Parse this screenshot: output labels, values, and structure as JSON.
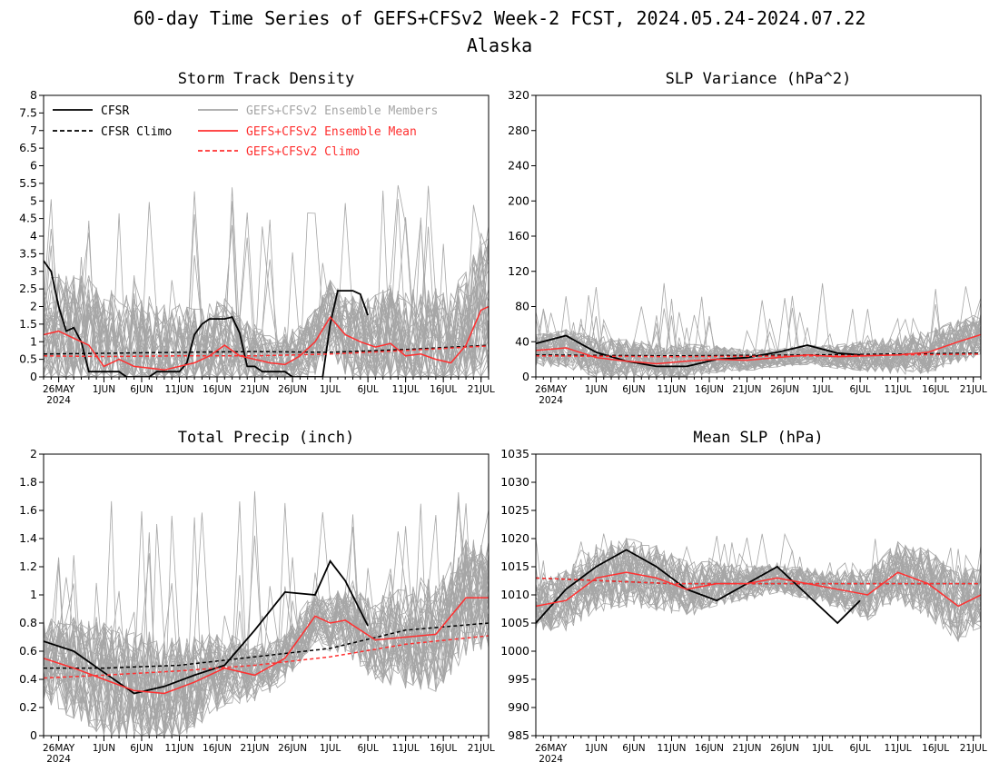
{
  "figure": {
    "title_line1": "60-day Time Series of GEFS+CFSv2 Week-2 FCST, 2024.05.24-2024.07.22",
    "title_line2": "Alaska"
  },
  "colors": {
    "obs": "#000000",
    "members": "#a6a6a6",
    "ens_mean": "#ff3030",
    "model_climo": "#ff3030",
    "obs_climo": "#000000"
  },
  "x_axis": {
    "start": "2024-05-24",
    "end": "2024-07-22",
    "tick_labels": [
      "26MAY",
      "1JUN",
      "6JUN",
      "11JUN",
      "16JUN",
      "21JUN",
      "26JUN",
      "1JUL",
      "6JUL",
      "11JUL",
      "16JUL",
      "21JUL"
    ],
    "tick_dates": [
      "2024-05-26",
      "2024-06-01",
      "2024-06-06",
      "2024-06-11",
      "2024-06-16",
      "2024-06-21",
      "2024-06-26",
      "2024-07-01",
      "2024-07-06",
      "2024-07-11",
      "2024-07-16",
      "2024-07-21"
    ],
    "year_label": "2024"
  },
  "legend": {
    "cfsr": "CFSR",
    "cfsr_climo": "CFSR Climo",
    "members": "GEFS+CFSv2 Ensemble Members",
    "ens_mean": "GEFS+CFSv2 Ensemble Mean",
    "model_climo": "GEFS+CFSv2 Climo"
  },
  "chart_data": [
    {
      "type": "line",
      "title": "Storm Track Density",
      "ylim": [
        0,
        8
      ],
      "yticks": [
        "0",
        "0.5",
        "1",
        "1.5",
        "2",
        "2.5",
        "3",
        "3.5",
        "4",
        "4.5",
        "5",
        "5.5",
        "6",
        "6.5",
        "7",
        "7.5",
        "8"
      ],
      "member_spread": {
        "center": 1.4,
        "halfwidth": 1.5,
        "peak_max": 5.6
      },
      "series": [
        {
          "name": "CFSR",
          "style": "obs",
          "x": [
            "2024-05-24",
            "2024-05-25",
            "2024-05-26",
            "2024-05-27",
            "2024-05-28",
            "2024-05-29",
            "2024-05-30",
            "2024-05-31",
            "2024-06-01",
            "2024-06-02",
            "2024-06-03",
            "2024-06-04",
            "2024-06-05",
            "2024-06-06",
            "2024-06-07",
            "2024-06-08",
            "2024-06-09",
            "2024-06-10",
            "2024-06-11",
            "2024-06-12",
            "2024-06-13",
            "2024-06-14",
            "2024-06-15",
            "2024-06-16",
            "2024-06-17",
            "2024-06-18",
            "2024-06-19",
            "2024-06-20",
            "2024-06-21",
            "2024-06-22",
            "2024-06-23",
            "2024-06-24",
            "2024-06-25",
            "2024-06-26",
            "2024-06-27",
            "2024-06-28",
            "2024-06-29",
            "2024-06-30",
            "2024-07-01",
            "2024-07-02",
            "2024-07-03",
            "2024-07-04",
            "2024-07-05",
            "2024-07-06"
          ],
          "values": [
            3.3,
            3.0,
            2.0,
            1.3,
            1.4,
            1.0,
            0.15,
            0.15,
            0.15,
            0.15,
            0.15,
            0.0,
            0.0,
            0.0,
            0.0,
            0.15,
            0.15,
            0.15,
            0.15,
            0.4,
            1.2,
            1.5,
            1.65,
            1.65,
            1.65,
            1.7,
            1.25,
            0.3,
            0.3,
            0.15,
            0.15,
            0.15,
            0.15,
            0.0,
            0.0,
            0.0,
            0.0,
            0.0,
            1.5,
            2.45,
            2.45,
            2.45,
            2.35,
            1.75
          ]
        },
        {
          "name": "CFSR Climo",
          "style": "obs_climo",
          "x": [
            "2024-05-24",
            "2024-06-01",
            "2024-06-11",
            "2024-06-21",
            "2024-07-01",
            "2024-07-11",
            "2024-07-22"
          ],
          "values": [
            0.65,
            0.67,
            0.7,
            0.72,
            0.7,
            0.78,
            0.9
          ]
        },
        {
          "name": "GEFS+CFSv2 Ensemble Mean",
          "style": "ens_mean",
          "x": [
            "2024-05-24",
            "2024-05-26",
            "2024-05-28",
            "2024-05-30",
            "2024-06-01",
            "2024-06-03",
            "2024-06-05",
            "2024-06-07",
            "2024-06-09",
            "2024-06-11",
            "2024-06-13",
            "2024-06-15",
            "2024-06-17",
            "2024-06-19",
            "2024-06-21",
            "2024-06-23",
            "2024-06-25",
            "2024-06-27",
            "2024-06-29",
            "2024-07-01",
            "2024-07-03",
            "2024-07-05",
            "2024-07-07",
            "2024-07-09",
            "2024-07-11",
            "2024-07-13",
            "2024-07-15",
            "2024-07-17",
            "2024-07-19",
            "2024-07-21",
            "2024-07-22"
          ],
          "values": [
            1.2,
            1.3,
            1.1,
            0.9,
            0.3,
            0.5,
            0.3,
            0.25,
            0.2,
            0.3,
            0.4,
            0.6,
            0.9,
            0.6,
            0.5,
            0.4,
            0.35,
            0.6,
            1.0,
            1.7,
            1.2,
            1.0,
            0.85,
            0.95,
            0.6,
            0.65,
            0.5,
            0.4,
            0.9,
            1.9,
            2.0
          ]
        },
        {
          "name": "GEFS+CFSv2 Climo",
          "style": "model_climo",
          "x": [
            "2024-05-24",
            "2024-06-01",
            "2024-06-11",
            "2024-06-21",
            "2024-07-01",
            "2024-07-11",
            "2024-07-22"
          ],
          "values": [
            0.6,
            0.58,
            0.6,
            0.6,
            0.65,
            0.75,
            0.88
          ]
        }
      ]
    },
    {
      "type": "line",
      "title": "SLP Variance (hPa^2)",
      "ylim": [
        0,
        320
      ],
      "yticks": [
        "0",
        "40",
        "80",
        "120",
        "160",
        "200",
        "240",
        "280",
        "320"
      ],
      "member_spread": {
        "center": 28,
        "halfwidth": 18,
        "peak_max": 108
      },
      "series": [
        {
          "name": "CFSR",
          "style": "obs",
          "x": [
            "2024-05-24",
            "2024-05-28",
            "2024-06-01",
            "2024-06-05",
            "2024-06-09",
            "2024-06-13",
            "2024-06-17",
            "2024-06-21",
            "2024-06-25",
            "2024-06-29",
            "2024-07-03",
            "2024-07-06"
          ],
          "values": [
            38,
            47,
            28,
            18,
            12,
            12,
            20,
            22,
            28,
            36,
            27,
            25
          ]
        },
        {
          "name": "CFSR Climo",
          "style": "obs_climo",
          "x": [
            "2024-05-24",
            "2024-06-11",
            "2024-06-29",
            "2024-07-22"
          ],
          "values": [
            25,
            24,
            25,
            27
          ]
        },
        {
          "name": "GEFS+CFSv2 Ensemble Mean",
          "style": "ens_mean",
          "x": [
            "2024-05-24",
            "2024-05-28",
            "2024-06-01",
            "2024-06-05",
            "2024-06-09",
            "2024-06-13",
            "2024-06-17",
            "2024-06-21",
            "2024-06-25",
            "2024-06-29",
            "2024-07-03",
            "2024-07-07",
            "2024-07-11",
            "2024-07-15",
            "2024-07-19",
            "2024-07-22"
          ],
          "values": [
            30,
            33,
            22,
            18,
            15,
            18,
            20,
            19,
            22,
            25,
            23,
            24,
            25,
            28,
            40,
            48
          ]
        },
        {
          "name": "GEFS+CFSv2 Climo",
          "style": "model_climo",
          "x": [
            "2024-05-24",
            "2024-06-11",
            "2024-07-01",
            "2024-07-22"
          ],
          "values": [
            24,
            23,
            24,
            26
          ]
        }
      ]
    },
    {
      "type": "line",
      "title": "Total Precip (inch)",
      "ylim": [
        0,
        2
      ],
      "yticks": [
        "0",
        "0.2",
        "0.4",
        "0.6",
        "0.8",
        "1",
        "1.2",
        "1.4",
        "1.6",
        "1.8",
        "2"
      ],
      "member_spread": {
        "center": 0.55,
        "halfwidth": 0.3,
        "peak_max": 1.75
      },
      "series": [
        {
          "name": "CFSR",
          "style": "obs",
          "x": [
            "2024-05-24",
            "2024-05-28",
            "2024-06-01",
            "2024-06-05",
            "2024-06-09",
            "2024-06-13",
            "2024-06-17",
            "2024-06-21",
            "2024-06-25",
            "2024-06-29",
            "2024-07-01",
            "2024-07-03",
            "2024-07-06"
          ],
          "values": [
            0.67,
            0.6,
            0.45,
            0.3,
            0.35,
            0.43,
            0.5,
            0.75,
            1.02,
            1.0,
            1.24,
            1.1,
            0.78
          ]
        },
        {
          "name": "CFSR Climo",
          "style": "obs_climo",
          "x": [
            "2024-05-24",
            "2024-06-01",
            "2024-06-11",
            "2024-06-21",
            "2024-07-01",
            "2024-07-11",
            "2024-07-22"
          ],
          "values": [
            0.48,
            0.48,
            0.5,
            0.56,
            0.62,
            0.75,
            0.8
          ]
        },
        {
          "name": "GEFS+CFSv2 Ensemble Mean",
          "style": "ens_mean",
          "x": [
            "2024-05-24",
            "2024-05-28",
            "2024-06-01",
            "2024-06-05",
            "2024-06-09",
            "2024-06-13",
            "2024-06-17",
            "2024-06-21",
            "2024-06-25",
            "2024-06-29",
            "2024-07-01",
            "2024-07-03",
            "2024-07-07",
            "2024-07-11",
            "2024-07-15",
            "2024-07-19",
            "2024-07-22"
          ],
          "values": [
            0.55,
            0.48,
            0.4,
            0.32,
            0.3,
            0.38,
            0.48,
            0.43,
            0.55,
            0.85,
            0.8,
            0.82,
            0.68,
            0.7,
            0.72,
            0.98,
            0.98
          ]
        },
        {
          "name": "GEFS+CFSv2 Climo",
          "style": "model_climo",
          "x": [
            "2024-05-24",
            "2024-06-01",
            "2024-06-11",
            "2024-06-21",
            "2024-07-01",
            "2024-07-11",
            "2024-07-22"
          ],
          "values": [
            0.41,
            0.43,
            0.46,
            0.5,
            0.56,
            0.65,
            0.71
          ]
        }
      ]
    },
    {
      "type": "line",
      "title": "Mean SLP (hPa)",
      "ylim": [
        985,
        1035
      ],
      "yticks": [
        "985",
        "990",
        "995",
        "1000",
        "1005",
        "1010",
        "1015",
        "1020",
        "1025",
        "1030",
        "1035"
      ],
      "member_spread": {
        "center": 1011,
        "halfwidth": 4.5,
        "peak_max": 1021
      },
      "series": [
        {
          "name": "CFSR",
          "style": "obs",
          "x": [
            "2024-05-24",
            "2024-05-28",
            "2024-06-01",
            "2024-06-05",
            "2024-06-09",
            "2024-06-13",
            "2024-06-17",
            "2024-06-21",
            "2024-06-25",
            "2024-06-29",
            "2024-07-03",
            "2024-07-06"
          ],
          "values": [
            1005,
            1011,
            1015,
            1018,
            1015,
            1011,
            1009,
            1012,
            1015,
            1010,
            1005,
            1009
          ]
        },
        {
          "name": "CFSR Climo",
          "style": "obs_climo",
          "x": [
            "2024-05-24",
            "2024-06-11",
            "2024-07-01",
            "2024-07-22"
          ],
          "values": [
            1013,
            1012,
            1012,
            1012
          ]
        },
        {
          "name": "GEFS+CFSv2 Ensemble Mean",
          "style": "ens_mean",
          "x": [
            "2024-05-24",
            "2024-05-28",
            "2024-06-01",
            "2024-06-05",
            "2024-06-09",
            "2024-06-13",
            "2024-06-17",
            "2024-06-21",
            "2024-06-25",
            "2024-06-29",
            "2024-07-03",
            "2024-07-07",
            "2024-07-11",
            "2024-07-15",
            "2024-07-19",
            "2024-07-22"
          ],
          "values": [
            1008,
            1009,
            1013,
            1014,
            1013,
            1011,
            1012,
            1012,
            1013,
            1012,
            1011,
            1010,
            1014,
            1012,
            1008,
            1010
          ]
        },
        {
          "name": "GEFS+CFSv2 Climo",
          "style": "model_climo",
          "x": [
            "2024-05-24",
            "2024-06-11",
            "2024-07-01",
            "2024-07-22"
          ],
          "values": [
            1013,
            1012,
            1012,
            1012
          ]
        }
      ]
    }
  ]
}
